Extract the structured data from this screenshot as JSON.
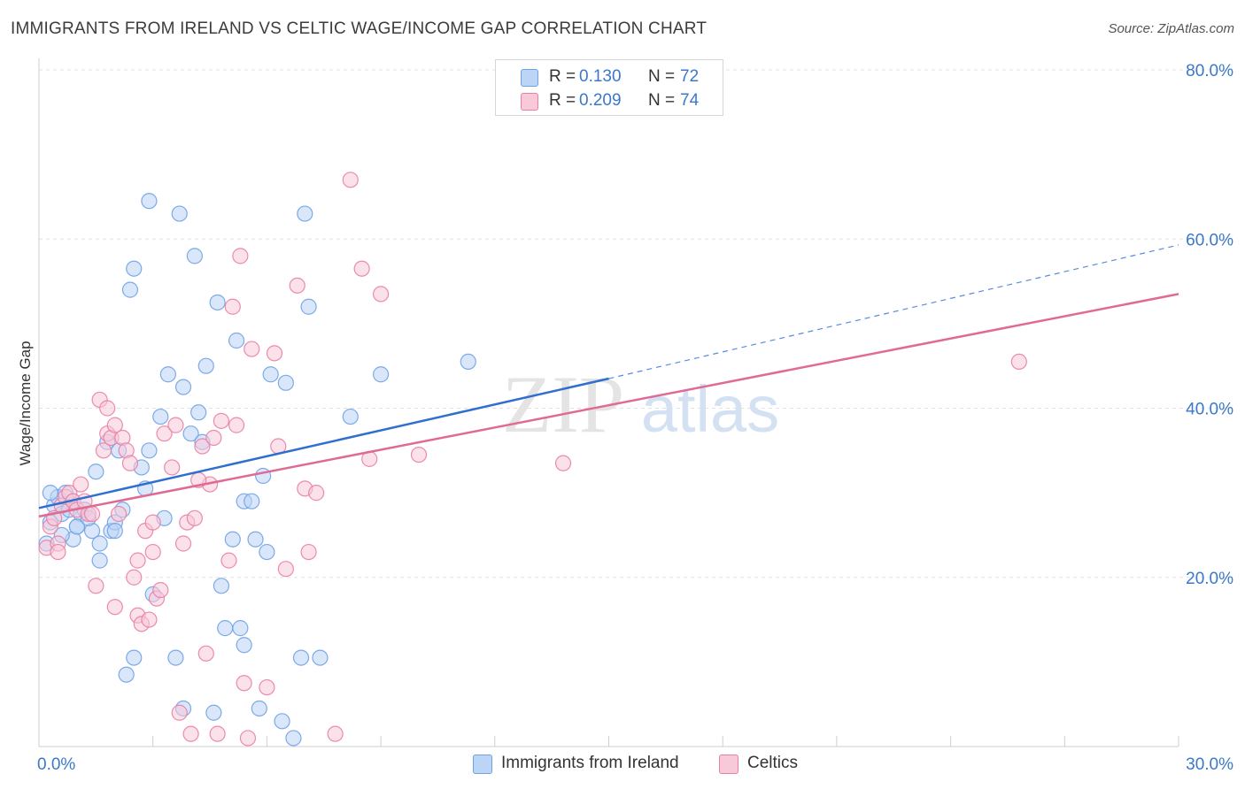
{
  "title": "IMMIGRANTS FROM IRELAND VS CELTIC WAGE/INCOME GAP CORRELATION CHART",
  "source": "Source: ZipAtlas.com",
  "watermark": {
    "zip": "ZIP",
    "atlas": "atlas"
  },
  "legend": {
    "r_label": "R =",
    "n_label": "N =",
    "series": [
      {
        "name": "Immigrants from Ireland",
        "r": "0.130",
        "n": "72",
        "color": "#6fa2e3",
        "fill": "#bcd4f6"
      },
      {
        "name": "Celtics",
        "r": "0.209",
        "n": "74",
        "color": "#e97fa3",
        "fill": "#f8c9d8"
      }
    ]
  },
  "chart_data": {
    "type": "scatter",
    "title": "IMMIGRANTS FROM IRELAND VS CELTIC WAGE/INCOME GAP CORRELATION CHART",
    "xlabel": "",
    "ylabel": "Wage/Income Gap",
    "xlim": [
      0,
      30
    ],
    "ylim": [
      0,
      80
    ],
    "x_tick_labels": [
      "0.0%",
      "30.0%"
    ],
    "y_ticks": [
      20,
      40,
      60,
      80
    ],
    "y_tick_labels": [
      "20.0%",
      "40.0%",
      "60.0%",
      "80.0%"
    ],
    "grid": true,
    "series": [
      {
        "name": "Immigrants from Ireland",
        "color": "#6fa2e3",
        "trend": {
          "x0": 0,
          "y0": 28.2,
          "x1": 15,
          "y1": 43.5,
          "dashed_to_x": 30,
          "dashed_to_y": 59.3,
          "color": "#2e6fcf"
        },
        "points": [
          [
            0.2,
            24
          ],
          [
            0.3,
            26.5
          ],
          [
            0.4,
            28.5
          ],
          [
            0.5,
            29.5
          ],
          [
            0.6,
            27.5
          ],
          [
            0.8,
            28
          ],
          [
            0.9,
            24.5
          ],
          [
            1.0,
            26
          ],
          [
            1.1,
            27.5
          ],
          [
            1.2,
            28
          ],
          [
            0.7,
            30
          ],
          [
            1.0,
            26
          ],
          [
            1.4,
            25.5
          ],
          [
            1.5,
            32.5
          ],
          [
            1.6,
            22
          ],
          [
            1.8,
            36
          ],
          [
            1.9,
            25.5
          ],
          [
            2.0,
            26.5
          ],
          [
            2.1,
            35
          ],
          [
            2.3,
            8.5
          ],
          [
            2.4,
            54
          ],
          [
            2.5,
            56.5
          ],
          [
            2.5,
            10.5
          ],
          [
            2.7,
            33
          ],
          [
            2.8,
            30.5
          ],
          [
            2.9,
            35
          ],
          [
            2.9,
            64.5
          ],
          [
            3.2,
            39
          ],
          [
            3.3,
            27
          ],
          [
            3.4,
            44
          ],
          [
            3.6,
            10.5
          ],
          [
            3.7,
            63
          ],
          [
            3.8,
            4.5
          ],
          [
            3.8,
            42.5
          ],
          [
            4.0,
            37
          ],
          [
            4.1,
            58
          ],
          [
            4.2,
            39.5
          ],
          [
            4.3,
            36
          ],
          [
            4.4,
            45
          ],
          [
            4.6,
            4
          ],
          [
            4.7,
            52.5
          ],
          [
            4.8,
            19
          ],
          [
            4.9,
            14
          ],
          [
            5.1,
            24.5
          ],
          [
            5.2,
            48
          ],
          [
            5.3,
            14
          ],
          [
            5.4,
            12
          ],
          [
            5.4,
            29
          ],
          [
            5.6,
            29
          ],
          [
            5.7,
            24.5
          ],
          [
            5.8,
            4.5
          ],
          [
            5.9,
            32
          ],
          [
            6.0,
            23
          ],
          [
            6.1,
            44
          ],
          [
            6.4,
            3
          ],
          [
            6.5,
            43
          ],
          [
            6.7,
            1
          ],
          [
            6.9,
            10.5
          ],
          [
            7.0,
            63
          ],
          [
            7.1,
            52
          ],
          [
            7.4,
            10.5
          ],
          [
            8.2,
            39
          ],
          [
            9.0,
            44
          ],
          [
            11.3,
            45.5
          ],
          [
            2.2,
            28
          ],
          [
            1.3,
            27
          ],
          [
            3.0,
            18
          ],
          [
            0.3,
            30
          ],
          [
            0.6,
            25
          ],
          [
            2.0,
            25.5
          ],
          [
            1.6,
            24
          ],
          [
            0.9,
            29
          ]
        ]
      },
      {
        "name": "Celtics",
        "color": "#e97fa3",
        "trend": {
          "x0": 0,
          "y0": 27.2,
          "x1": 30,
          "y1": 53.5,
          "color": "#e06a94"
        },
        "points": [
          [
            0.2,
            23.5
          ],
          [
            0.3,
            26
          ],
          [
            0.4,
            27
          ],
          [
            0.6,
            28.5
          ],
          [
            0.7,
            29.5
          ],
          [
            0.8,
            30
          ],
          [
            0.9,
            29
          ],
          [
            1.0,
            28
          ],
          [
            1.1,
            31
          ],
          [
            1.2,
            29
          ],
          [
            0.5,
            24
          ],
          [
            1.3,
            27.5
          ],
          [
            1.5,
            19
          ],
          [
            1.6,
            41
          ],
          [
            1.7,
            35
          ],
          [
            1.8,
            37
          ],
          [
            1.9,
            36.5
          ],
          [
            2.0,
            16.5
          ],
          [
            2.1,
            27.5
          ],
          [
            2.2,
            36.5
          ],
          [
            2.3,
            35
          ],
          [
            2.4,
            33.5
          ],
          [
            2.5,
            20
          ],
          [
            2.6,
            15.5
          ],
          [
            2.7,
            14.5
          ],
          [
            2.8,
            25.5
          ],
          [
            2.9,
            15
          ],
          [
            3.0,
            26.5
          ],
          [
            3.1,
            17.5
          ],
          [
            3.2,
            18.5
          ],
          [
            3.3,
            37
          ],
          [
            3.5,
            33
          ],
          [
            3.6,
            38
          ],
          [
            3.7,
            4
          ],
          [
            3.9,
            26.5
          ],
          [
            4.0,
            1.5
          ],
          [
            4.1,
            27
          ],
          [
            4.3,
            35.5
          ],
          [
            4.4,
            11
          ],
          [
            4.5,
            31
          ],
          [
            4.6,
            36.5
          ],
          [
            4.7,
            1.5
          ],
          [
            4.8,
            38.5
          ],
          [
            5.0,
            22
          ],
          [
            5.1,
            52
          ],
          [
            5.2,
            38
          ],
          [
            5.3,
            58
          ],
          [
            5.4,
            7.5
          ],
          [
            5.5,
            1
          ],
          [
            5.6,
            47
          ],
          [
            6.0,
            7
          ],
          [
            6.2,
            46.5
          ],
          [
            6.3,
            35.5
          ],
          [
            6.5,
            21
          ],
          [
            6.8,
            54.5
          ],
          [
            7.0,
            30.5
          ],
          [
            7.1,
            23
          ],
          [
            7.3,
            30
          ],
          [
            7.8,
            1.5
          ],
          [
            8.2,
            67
          ],
          [
            8.5,
            56.5
          ],
          [
            8.7,
            34
          ],
          [
            9.0,
            53.5
          ],
          [
            10.0,
            34.5
          ],
          [
            13.8,
            33.5
          ],
          [
            25.8,
            45.5
          ],
          [
            3.0,
            23
          ],
          [
            2.0,
            38
          ],
          [
            1.4,
            27.5
          ],
          [
            0.5,
            23
          ],
          [
            3.8,
            24
          ],
          [
            4.2,
            31.5
          ],
          [
            2.6,
            22
          ],
          [
            1.8,
            40
          ]
        ]
      }
    ]
  }
}
